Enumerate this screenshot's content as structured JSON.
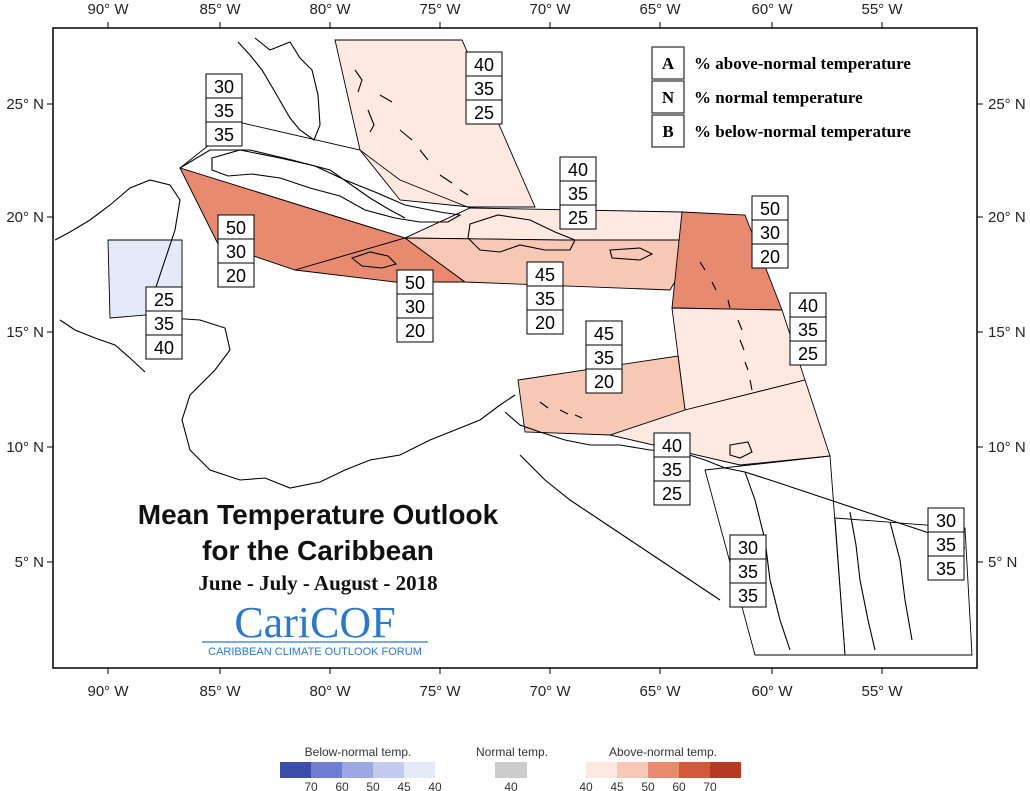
{
  "colors": {
    "above40": "#fde9e2",
    "above45": "#f8c8b6",
    "above50": "#e88a70",
    "above60": "#d4583c",
    "above70": "#b83a24",
    "normal40": "#cccccc",
    "below40": "#e5eaf8",
    "below45": "#c3cbee",
    "below50": "#9ca8e2",
    "below60": "#6f7ed2",
    "below70": "#3c4ea8"
  },
  "axes": {
    "lon_labels": [
      "90° W",
      "85° W",
      "80° W",
      "75° W",
      "70° W",
      "65° W",
      "60° W",
      "55° W"
    ],
    "lat_labels": [
      "25° N",
      "20° N",
      "15° N",
      "10° N",
      "5° N"
    ]
  },
  "legend": {
    "items": [
      {
        "key": "A",
        "label": "% above-normal temperature"
      },
      {
        "key": "N",
        "label": "% normal temperature"
      },
      {
        "key": "B",
        "label": "% below-normal temperature"
      }
    ]
  },
  "title": {
    "line1": "Mean Temperature Outlook",
    "line2": "for the Caribbean",
    "season": "June - July - August - 2018"
  },
  "logo": {
    "name": "CariCOF",
    "subtitle": "CARIBBEAN CLIMATE OUTLOOK FORUM"
  },
  "regions": [
    {
      "id": "bahamas",
      "probs": [
        "40",
        "35",
        "25"
      ],
      "category": "above40"
    },
    {
      "id": "cuba",
      "probs": [
        "30",
        "35",
        "35"
      ],
      "category": "none"
    },
    {
      "id": "cayman-west",
      "probs": [
        "50",
        "30",
        "20"
      ],
      "category": "above50"
    },
    {
      "id": "jamaica",
      "probs": [
        "50",
        "30",
        "20"
      ],
      "category": "above50"
    },
    {
      "id": "turks-caicos",
      "probs": [
        "40",
        "35",
        "25"
      ],
      "category": "above40"
    },
    {
      "id": "hispaniola-pr",
      "probs": [
        "45",
        "35",
        "20"
      ],
      "category": "above45"
    },
    {
      "id": "leeward-islands",
      "probs": [
        "50",
        "30",
        "20"
      ],
      "category": "above50"
    },
    {
      "id": "windward-islands",
      "probs": [
        "40",
        "35",
        "25"
      ],
      "category": "above40"
    },
    {
      "id": "abc-islands",
      "probs": [
        "45",
        "35",
        "20"
      ],
      "category": "above45"
    },
    {
      "id": "trinidad",
      "probs": [
        "40",
        "35",
        "25"
      ],
      "category": "above40"
    },
    {
      "id": "belize",
      "probs": [
        "25",
        "35",
        "40"
      ],
      "category": "below40"
    },
    {
      "id": "guyana",
      "probs": [
        "30",
        "35",
        "35"
      ],
      "category": "none"
    },
    {
      "id": "suriname-guiana",
      "probs": [
        "30",
        "35",
        "35"
      ],
      "category": "none"
    }
  ],
  "scale": {
    "below_title": "Below-normal temp.",
    "normal_title": "Normal temp.",
    "above_title": "Above-normal temp.",
    "below_ticks": [
      "70",
      "60",
      "50",
      "45",
      "40"
    ],
    "normal_ticks": [
      "40"
    ],
    "above_ticks": [
      "40",
      "45",
      "50",
      "60",
      "70"
    ]
  }
}
